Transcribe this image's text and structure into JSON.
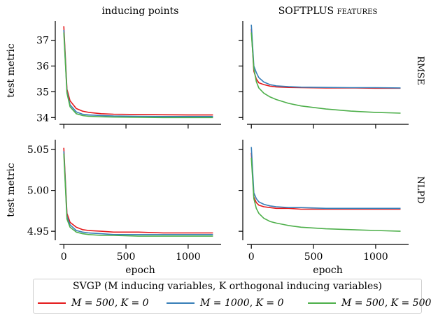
{
  "chart_data": {
    "type": "line",
    "column_titles": [
      "inducing points",
      "SOFTPLUS features"
    ],
    "row_labels": [
      "RMSE",
      "NLPD"
    ],
    "ylabel": "test metric",
    "xlabel": "epoch",
    "xlim": [
      -35,
      1265
    ],
    "xticks": [
      0,
      500,
      1000
    ],
    "rows": [
      {
        "ylim": [
          33.9,
          37.75
        ],
        "yticks": [
          34,
          35,
          36,
          37
        ]
      },
      {
        "ylim": [
          4.939,
          5.062
        ],
        "yticks": [
          4.95,
          5.0,
          5.05
        ],
        "ytick_labels": [
          "4.95",
          "5.00",
          "5.05"
        ]
      }
    ],
    "legend": {
      "title": "SVGP (M inducing variables, K orthogonal inducing variables)",
      "entries": [
        "M = 500, K = 0",
        "M = 1000, K = 0",
        "M = 500, K = 500"
      ],
      "colors": [
        "#e41a1c",
        "#377eb8",
        "#4daf4a"
      ],
      "location": "bottom"
    },
    "panels": [
      {
        "row": 0,
        "col": 0,
        "series": [
          {
            "x": [
              0,
              25,
              50,
              100,
              150,
              200,
              300,
              400,
              600,
              800,
              1000,
              1200
            ],
            "values": [
              37.55,
              35.1,
              34.65,
              34.35,
              34.25,
              34.2,
              34.15,
              34.13,
              34.12,
              34.11,
              34.1,
              34.1
            ]
          },
          {
            "x": [
              0,
              25,
              50,
              100,
              150,
              200,
              300,
              400,
              600,
              800,
              1000,
              1200
            ],
            "values": [
              37.4,
              35.0,
              34.5,
              34.22,
              34.13,
              34.1,
              34.08,
              34.06,
              34.05,
              34.04,
              34.04,
              34.04
            ]
          },
          {
            "x": [
              0,
              25,
              50,
              100,
              150,
              200,
              300,
              400,
              600,
              800,
              1000,
              1200
            ],
            "values": [
              37.3,
              34.95,
              34.42,
              34.15,
              34.08,
              34.05,
              34.03,
              34.02,
              34.01,
              34.0,
              34.0,
              34.0
            ]
          }
        ]
      },
      {
        "row": 0,
        "col": 1,
        "series": [
          {
            "x": [
              0,
              20,
              40,
              60,
              100,
              150,
              200,
              300,
              400,
              600,
              800,
              1000,
              1200
            ],
            "values": [
              37.45,
              35.8,
              35.5,
              35.35,
              35.28,
              35.22,
              35.19,
              35.17,
              35.16,
              35.15,
              35.15,
              35.14,
              35.14
            ]
          },
          {
            "x": [
              0,
              20,
              40,
              60,
              100,
              150,
              200,
              300,
              400,
              600,
              800,
              1000,
              1200
            ],
            "values": [
              37.6,
              36.0,
              35.75,
              35.55,
              35.38,
              35.28,
              35.23,
              35.2,
              35.18,
              35.17,
              35.16,
              35.16,
              35.15
            ]
          },
          {
            "x": [
              0,
              20,
              40,
              60,
              100,
              150,
              200,
              300,
              400,
              600,
              800,
              1000,
              1200
            ],
            "values": [
              37.3,
              35.9,
              35.4,
              35.15,
              34.95,
              34.8,
              34.7,
              34.55,
              34.45,
              34.33,
              34.25,
              34.2,
              34.17
            ]
          }
        ]
      },
      {
        "row": 1,
        "col": 0,
        "series": [
          {
            "x": [
              0,
              25,
              50,
              100,
              150,
              200,
              300,
              400,
              600,
              800,
              1000,
              1200
            ],
            "values": [
              5.052,
              4.972,
              4.961,
              4.955,
              4.952,
              4.951,
              4.95,
              4.949,
              4.949,
              4.948,
              4.948,
              4.948
            ]
          },
          {
            "x": [
              0,
              25,
              50,
              100,
              150,
              200,
              300,
              400,
              600,
              800,
              1000,
              1200
            ],
            "values": [
              5.048,
              4.968,
              4.958,
              4.951,
              4.949,
              4.948,
              4.947,
              4.946,
              4.946,
              4.946,
              4.946,
              4.946
            ]
          },
          {
            "x": [
              0,
              25,
              50,
              100,
              150,
              200,
              300,
              400,
              600,
              800,
              1000,
              1200
            ],
            "values": [
              5.045,
              4.965,
              4.955,
              4.949,
              4.947,
              4.946,
              4.945,
              4.945,
              4.944,
              4.944,
              4.944,
              4.944
            ]
          }
        ]
      },
      {
        "row": 1,
        "col": 1,
        "series": [
          {
            "x": [
              0,
              20,
              40,
              60,
              100,
              150,
              200,
              300,
              400,
              600,
              800,
              1000,
              1200
            ],
            "values": [
              5.046,
              4.992,
              4.985,
              4.982,
              4.98,
              4.979,
              4.978,
              4.978,
              4.977,
              4.977,
              4.977,
              4.977,
              4.977
            ]
          },
          {
            "x": [
              0,
              20,
              40,
              60,
              100,
              150,
              200,
              300,
              400,
              600,
              800,
              1000,
              1200
            ],
            "values": [
              5.053,
              4.997,
              4.99,
              4.986,
              4.983,
              4.981,
              4.98,
              4.979,
              4.979,
              4.978,
              4.978,
              4.978,
              4.978
            ]
          },
          {
            "x": [
              0,
              20,
              40,
              60,
              100,
              150,
              200,
              300,
              400,
              600,
              800,
              1000,
              1200
            ],
            "values": [
              5.04,
              4.99,
              4.978,
              4.972,
              4.966,
              4.962,
              4.96,
              4.957,
              4.955,
              4.953,
              4.952,
              4.951,
              4.95
            ]
          }
        ]
      }
    ]
  }
}
